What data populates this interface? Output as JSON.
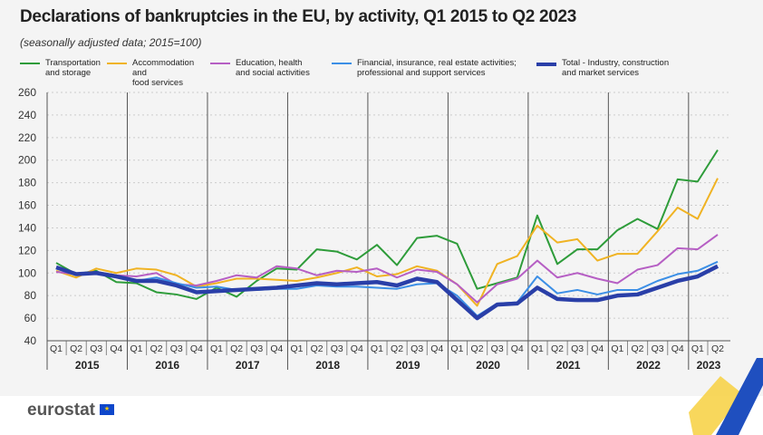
{
  "title": "Declarations of bankruptcies in the EU, by activity, Q1 2015 to Q2 2023",
  "subtitle": "(seasonally adjusted data; 2015=100)",
  "logo": "eurostat",
  "chart_data": {
    "type": "line",
    "title": "Declarations of bankruptcies in the EU, by activity, Q1 2015 to Q2 2023",
    "ylim": [
      40,
      260
    ],
    "yticks": [
      40,
      60,
      80,
      100,
      120,
      140,
      160,
      180,
      200,
      220,
      240,
      260
    ],
    "quarters": [
      "Q1",
      "Q2",
      "Q3",
      "Q4"
    ],
    "years": [
      "2015",
      "2016",
      "2017",
      "2018",
      "2019",
      "2020",
      "2021",
      "2022",
      "2023"
    ],
    "series": [
      {
        "name": "Transportation and storage",
        "l1": "Transportation",
        "l2": "and storage",
        "color": "#2e9c3a",
        "width": 2,
        "values": [
          109,
          99,
          102,
          92,
          91,
          83,
          81,
          77,
          87,
          79,
          93,
          104,
          103,
          121,
          119,
          112,
          125,
          107,
          131,
          133,
          126,
          86,
          91,
          96,
          151,
          108,
          121,
          121,
          138,
          148,
          139,
          183,
          181,
          209
        ]
      },
      {
        "name": "Accommodation and food services",
        "l1": "Accommodation and",
        "l2": "food services",
        "color": "#f0b323",
        "width": 2,
        "values": [
          102,
          96,
          104,
          100,
          104,
          103,
          98,
          88,
          91,
          95,
          95,
          94,
          93,
          96,
          100,
          105,
          97,
          99,
          106,
          102,
          90,
          71,
          108,
          115,
          142,
          127,
          130,
          111,
          117,
          117,
          137,
          158,
          148,
          184
        ]
      },
      {
        "name": "Education, health and social activities",
        "l1": "Education,  health",
        "l2": "and social activities",
        "color": "#b65fc4",
        "width": 2,
        "values": [
          101,
          99,
          101,
          98,
          97,
          100,
          90,
          89,
          93,
          98,
          96,
          106,
          104,
          98,
          102,
          101,
          104,
          96,
          103,
          101,
          90,
          74,
          90,
          95,
          111,
          96,
          100,
          95,
          91,
          103,
          107,
          122,
          121,
          134
        ]
      },
      {
        "name": "Financial, insurance, real estate activities; professional and support services",
        "l1": "Financial, insurance, real estate activities;",
        "l2": "professional and support services",
        "color": "#3c8fe6",
        "width": 2,
        "values": [
          104,
          99,
          101,
          97,
          93,
          96,
          91,
          87,
          88,
          85,
          85,
          86,
          86,
          89,
          88,
          88,
          87,
          86,
          90,
          91,
          80,
          62,
          73,
          74,
          97,
          82,
          85,
          81,
          85,
          85,
          93,
          99,
          102,
          110
        ]
      },
      {
        "name": "Total - Industry, construction and market services",
        "l1": "Total - Industry, construction",
        "l2": "and market services",
        "color": "#2a3fa8",
        "width": 4.5,
        "values": [
          105,
          99,
          100,
          97,
          93,
          93,
          89,
          83,
          84,
          85,
          86,
          87,
          89,
          91,
          90,
          91,
          92,
          89,
          95,
          92,
          76,
          60,
          72,
          73,
          87,
          77,
          76,
          76,
          80,
          81,
          87,
          93,
          97,
          106
        ]
      }
    ]
  }
}
